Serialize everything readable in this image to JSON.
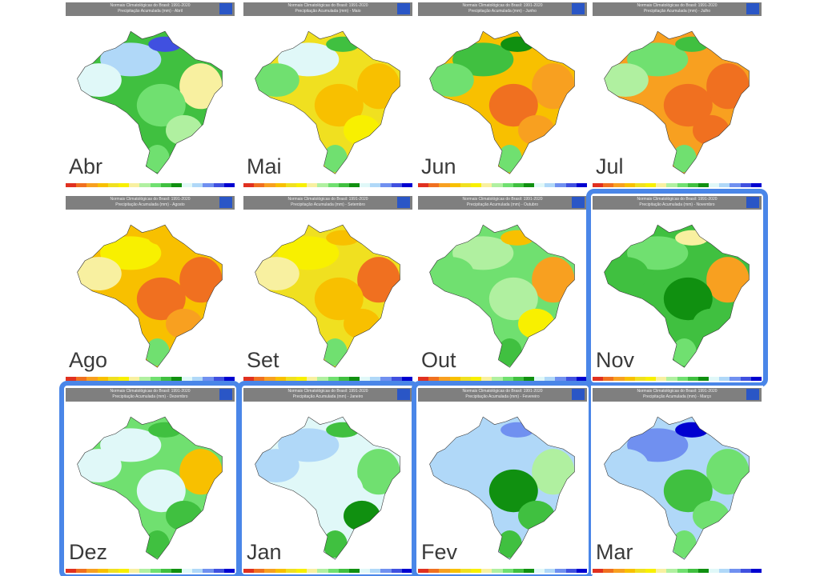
{
  "title": "Normais Climatológicas do Brasil: 1991-2020",
  "colorbar": [
    "#e03020",
    "#f07020",
    "#f8a020",
    "#f8c000",
    "#f0e020",
    "#f8f000",
    "#f8f0a0",
    "#b0f0a0",
    "#70e070",
    "#40c040",
    "#109010",
    "#e0f8f8",
    "#b0d8f8",
    "#7090f0",
    "#4050e0",
    "#0000d0"
  ],
  "highlight_color": "#4a86e8",
  "panels": [
    {
      "label": "Abr",
      "subtitle": "Precipitação Acumulada (mm) - Abril",
      "highlighted": false,
      "colors": {
        "base": "#40c040",
        "north": "#b0d8f8",
        "northwest": "#e0f8f8",
        "coast": "#4050e0",
        "northeast": "#f8f0a0",
        "central": "#70e070",
        "southeast": "#b0f0a0",
        "south": "#70e070"
      }
    },
    {
      "label": "Mai",
      "subtitle": "Precipitação Acumulada (mm) - Maio",
      "highlighted": false,
      "colors": {
        "base": "#f0e020",
        "north": "#e0f8f8",
        "northwest": "#70e070",
        "coast": "#40c040",
        "northeast": "#f8c000",
        "central": "#f8c000",
        "southeast": "#f8f000",
        "south": "#70e070"
      }
    },
    {
      "label": "Jun",
      "subtitle": "Precipitação Acumulada (mm) - Junho",
      "highlighted": false,
      "colors": {
        "base": "#f8c000",
        "north": "#40c040",
        "northwest": "#70e070",
        "coast": "#109010",
        "northeast": "#f8a020",
        "central": "#f07020",
        "southeast": "#f8a020",
        "south": "#70e070"
      }
    },
    {
      "label": "Jul",
      "subtitle": "Precipitação Acumulada (mm) - Julho",
      "highlighted": false,
      "colors": {
        "base": "#f8a020",
        "north": "#70e070",
        "northwest": "#b0f0a0",
        "coast": "#40c040",
        "northeast": "#f07020",
        "central": "#f07020",
        "southeast": "#f07020",
        "south": "#70e070"
      }
    },
    {
      "label": "Ago",
      "subtitle": "Precipitação Acumulada (mm) - Agosto",
      "highlighted": false,
      "colors": {
        "base": "#f8c000",
        "north": "#f8f000",
        "northwest": "#f8f0a0",
        "coast": "#f8c000",
        "northeast": "#f07020",
        "central": "#f07020",
        "southeast": "#f8a020",
        "south": "#70e070"
      }
    },
    {
      "label": "Set",
      "subtitle": "Precipitação Acumulada (mm) - Setembro",
      "highlighted": false,
      "colors": {
        "base": "#f0e020",
        "north": "#f8f000",
        "northwest": "#f8f0a0",
        "coast": "#f8c000",
        "northeast": "#f07020",
        "central": "#f8c000",
        "southeast": "#f8c000",
        "south": "#70e070"
      }
    },
    {
      "label": "Out",
      "subtitle": "Precipitação Acumulada (mm) - Outubro",
      "highlighted": false,
      "colors": {
        "base": "#70e070",
        "north": "#b0f0a0",
        "northwest": "#70e070",
        "coast": "#f8c000",
        "northeast": "#f8a020",
        "central": "#b0f0a0",
        "southeast": "#f8f000",
        "south": "#40c040"
      }
    },
    {
      "label": "Nov",
      "subtitle": "Precipitação Acumulada (mm) - Novembro",
      "highlighted": true,
      "colors": {
        "base": "#40c040",
        "north": "#70e070",
        "northwest": "#40c040",
        "coast": "#f8f0a0",
        "northeast": "#f8a020",
        "central": "#109010",
        "southeast": "#40c040",
        "south": "#70e070"
      }
    },
    {
      "label": "Dez",
      "subtitle": "Precipitação Acumulada (mm) - Dezembro",
      "highlighted": true,
      "colors": {
        "base": "#70e070",
        "north": "#e0f8f8",
        "northwest": "#e0f8f8",
        "coast": "#40c040",
        "northeast": "#f8c000",
        "central": "#e0f8f8",
        "southeast": "#40c040",
        "south": "#40c040"
      }
    },
    {
      "label": "Jan",
      "subtitle": "Precipitação Acumulada (mm) - Janeiro",
      "highlighted": true,
      "colors": {
        "base": "#e0f8f8",
        "north": "#b0d8f8",
        "northwest": "#b0d8f8",
        "coast": "#40c040",
        "northeast": "#70e070",
        "central": "#e0f8f8",
        "southeast": "#109010",
        "south": "#40c040"
      }
    },
    {
      "label": "Fev",
      "subtitle": "Precipitação Acumulada (mm) - Fevereiro",
      "highlighted": true,
      "colors": {
        "base": "#b0d8f8",
        "north": "#b0d8f8",
        "northwest": "#b0d8f8",
        "coast": "#7090f0",
        "northeast": "#b0f0a0",
        "central": "#109010",
        "southeast": "#40c040",
        "south": "#40c040"
      }
    },
    {
      "label": "Mar",
      "subtitle": "Precipitação Acumulada (mm) - Março",
      "highlighted": false,
      "colors": {
        "base": "#b0d8f8",
        "north": "#7090f0",
        "northwest": "#b0d8f8",
        "coast": "#0000d0",
        "northeast": "#70e070",
        "central": "#40c040",
        "southeast": "#70e070",
        "south": "#70e070"
      }
    }
  ]
}
